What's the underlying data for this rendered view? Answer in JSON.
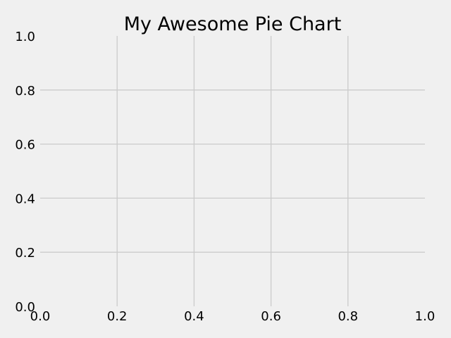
{
  "chart_data": {
    "type": "pie",
    "title": "My Awesome Pie Chart",
    "xlabel": "",
    "ylabel": "",
    "xlim": [
      0,
      1
    ],
    "ylim": [
      0,
      1
    ],
    "x_ticks": [
      0.0,
      0.2,
      0.4,
      0.6,
      0.8,
      1.0
    ],
    "y_ticks": [
      0.0,
      0.2,
      0.4,
      0.6,
      0.8,
      1.0
    ],
    "x_tick_labels": [
      "0.0",
      "0.2",
      "0.4",
      "0.6",
      "0.8",
      "1.0"
    ],
    "y_tick_labels": [
      "0.0",
      "0.2",
      "0.4",
      "0.6",
      "0.8",
      "1.0"
    ],
    "grid": true,
    "slices": [],
    "colors": {
      "background": "#f0f0f0",
      "grid": "#cbcbcb",
      "text": "#000000"
    }
  }
}
